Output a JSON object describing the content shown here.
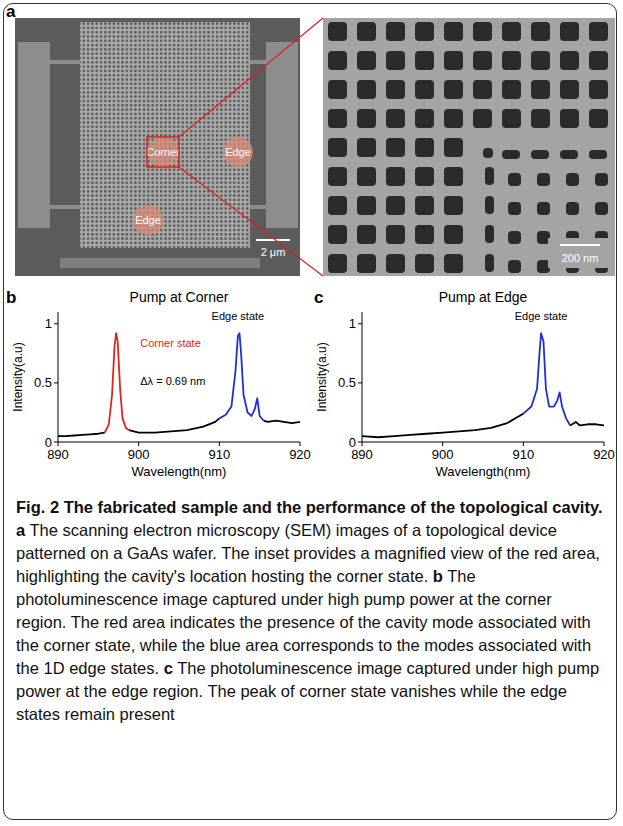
{
  "panel_a": {
    "letter": "a",
    "labels": [
      "Corner",
      "Edge",
      "Edge"
    ],
    "scale_bars": [
      "2 μm",
      "200 nm"
    ]
  },
  "chart_data": [
    {
      "type": "line",
      "letter": "b",
      "title": "Pump at Corner",
      "x_label": "Wavelength(nm)",
      "y_label": "Intensity(a.u)",
      "xlim": [
        890,
        920
      ],
      "xticks": [
        890,
        900,
        910,
        920
      ],
      "ylim": [
        0,
        1.1
      ],
      "yticks": [
        0,
        0.5,
        1
      ],
      "series": [
        {
          "color": "#000000",
          "x": [
            890,
            891,
            892,
            893,
            894,
            895,
            895.8,
            897.2,
            898.8,
            900,
            902,
            904,
            906,
            908,
            909.5,
            910,
            912.5,
            915.5,
            916,
            917,
            918,
            919,
            920
          ],
          "values": [
            0.05,
            0.05,
            0.055,
            0.06,
            0.065,
            0.07,
            0.08,
            null,
            0.1,
            0.08,
            0.08,
            0.09,
            0.1,
            0.13,
            0.17,
            0.2,
            null,
            0.18,
            0.17,
            0.18,
            0.17,
            0.16,
            0.17
          ]
        },
        {
          "color": "#e0241c",
          "x": [
            895.8,
            896.3,
            896.7,
            897.0,
            897.2,
            897.4,
            897.7,
            898.0,
            898.4,
            898.8
          ],
          "values": [
            0.08,
            0.15,
            0.4,
            0.8,
            0.92,
            0.85,
            0.45,
            0.2,
            0.12,
            0.1
          ]
        },
        {
          "color": "#1f2fd6",
          "x": [
            910,
            910.8,
            911.5,
            912,
            912.3,
            912.5,
            912.7,
            913,
            913.5,
            914,
            914.4,
            914.7,
            915,
            915.5
          ],
          "values": [
            0.2,
            0.23,
            0.3,
            0.6,
            0.9,
            0.92,
            0.75,
            0.4,
            0.25,
            0.22,
            0.28,
            0.37,
            0.22,
            0.18
          ]
        }
      ],
      "annotations": [
        {
          "text": "Corner state",
          "x": 900.2,
          "y": 0.8,
          "color": "#e0241c"
        },
        {
          "text": "Δλ = 0.69 nm",
          "x": 900.2,
          "y": 0.48,
          "color": "#000000"
        },
        {
          "text": "Edge state",
          "x": 912.3,
          "y": 1.03,
          "color": "#000000"
        }
      ]
    },
    {
      "type": "line",
      "letter": "c",
      "title": "Pump at Edge",
      "x_label": "Wavelength(nm)",
      "y_label": "Intensity(a.u)",
      "xlim": [
        890,
        920
      ],
      "xticks": [
        890,
        900,
        910,
        920
      ],
      "ylim": [
        0,
        1.1
      ],
      "yticks": [
        0,
        0.5,
        1
      ],
      "series": [
        {
          "color": "#000000",
          "x": [
            890,
            892,
            894,
            896,
            898,
            900,
            902,
            904,
            906,
            908,
            909.5,
            910,
            912.5,
            915.8,
            916.5,
            917,
            918,
            919,
            920
          ],
          "values": [
            0.05,
            0.04,
            0.05,
            0.06,
            0.07,
            0.08,
            0.09,
            0.1,
            0.12,
            0.16,
            0.22,
            0.24,
            null,
            0.14,
            0.17,
            0.14,
            0.15,
            0.15,
            0.14
          ]
        },
        {
          "color": "#1f2fd6",
          "x": [
            910,
            911,
            911.7,
            912,
            912.2,
            912.5,
            912.8,
            913.2,
            913.8,
            914.2,
            914.5,
            914.8,
            915.3,
            915.8
          ],
          "values": [
            0.24,
            0.3,
            0.45,
            0.75,
            0.92,
            0.85,
            0.45,
            0.3,
            0.3,
            0.35,
            0.42,
            0.3,
            0.2,
            0.14
          ]
        }
      ],
      "annotations": [
        {
          "text": "Edge state",
          "x": 912.2,
          "y": 1.03,
          "color": "#000000"
        }
      ]
    }
  ],
  "caption": {
    "title": "Fig. 2 The fabricated sample and the performance of the topological cavity.",
    "items": [
      {
        "label": "a",
        "text": "The scanning electron microscopy (SEM) images of a topological device patterned on a GaAs wafer. The inset provides a magnified view of the red area, highlighting the cavity's location hosting the corner state."
      },
      {
        "label": "b",
        "text": "The photoluminescence image captured under high pump power at the corner region. The red area indicates the presence of the cavity mode associated with the corner state, while the blue area corresponds to the modes associated with the 1D edge states."
      },
      {
        "label": "c",
        "text": "The photoluminescence image captured under high pump power at the edge region. The peak of corner state vanishes while the edge states remain present"
      }
    ]
  }
}
